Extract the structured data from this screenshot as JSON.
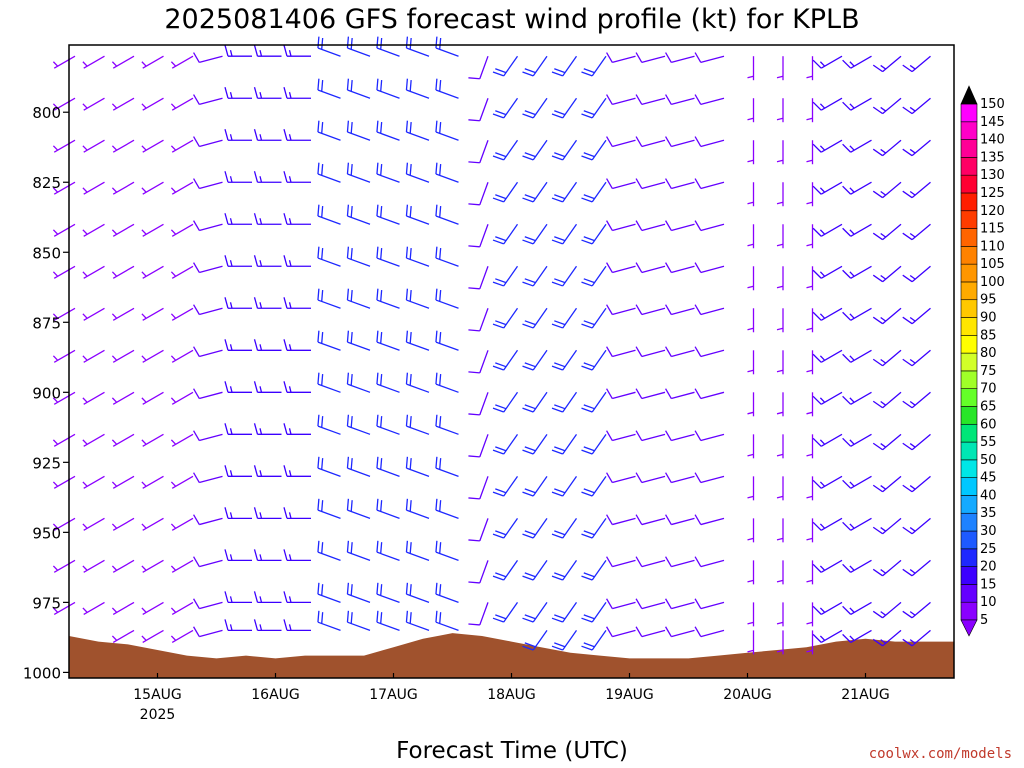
{
  "chart_data": {
    "type": "wind-barb-profile",
    "title": "2025081406 GFS forecast wind profile (kt) for KPLB",
    "xlabel": "Forecast Time (UTC)",
    "credit": "coolwx.com/models",
    "credit_color": "#c0392b",
    "terrain_color": "#a0522d",
    "y_axis": {
      "scale": "linear-pressure-inverted",
      "range_hpa": [
        1002,
        776
      ],
      "ticks": [
        {
          "value": 800,
          "label": "800"
        },
        {
          "value": 825,
          "label": "825"
        },
        {
          "value": 850,
          "label": "850"
        },
        {
          "value": 875,
          "label": "875"
        },
        {
          "value": 900,
          "label": "900"
        },
        {
          "value": 925,
          "label": "925"
        },
        {
          "value": 950,
          "label": "950"
        },
        {
          "value": 975,
          "label": "975"
        },
        {
          "value": 1000,
          "label": "1000"
        }
      ]
    },
    "x_axis": {
      "range_hours_from_init": [
        0,
        180
      ],
      "ticks": [
        {
          "hour": 18,
          "label": "15AUG",
          "sublabel": "2025"
        },
        {
          "hour": 42,
          "label": "16AUG",
          "sublabel": ""
        },
        {
          "hour": 66,
          "label": "17AUG",
          "sublabel": ""
        },
        {
          "hour": 90,
          "label": "18AUG",
          "sublabel": ""
        },
        {
          "hour": 114,
          "label": "19AUG",
          "sublabel": ""
        },
        {
          "hour": 138,
          "label": "20AUG",
          "sublabel": ""
        },
        {
          "hour": 162,
          "label": "21AUG",
          "sublabel": ""
        }
      ]
    },
    "levels_hpa": [
      780,
      795,
      810,
      825,
      840,
      855,
      870,
      885,
      900,
      915,
      930,
      945,
      960,
      975,
      985
    ],
    "time_hours": [
      0,
      6,
      12,
      18,
      24,
      30,
      36,
      42,
      48,
      54,
      60,
      66,
      72,
      78,
      84,
      90,
      96,
      102,
      108,
      114,
      120,
      126,
      132,
      138,
      144,
      150,
      156,
      162,
      168,
      174
    ],
    "wind_regimes": [
      {
        "hours": [
          0,
          30
        ],
        "direction_deg": 240,
        "speed_kt": 7
      },
      {
        "hours": [
          30,
          36
        ],
        "direction_deg": 255,
        "speed_kt": 8
      },
      {
        "hours": [
          36,
          54
        ],
        "direction_deg": 270,
        "speed_kt": 14
      },
      {
        "hours": [
          54,
          84
        ],
        "direction_deg": 290,
        "speed_kt": 22
      },
      {
        "hours": [
          84,
          90
        ],
        "direction_deg": 200,
        "speed_kt": 10
      },
      {
        "hours": [
          90,
          114
        ],
        "direction_deg": 215,
        "speed_kt": 18
      },
      {
        "hours": [
          114,
          138
        ],
        "direction_deg": 255,
        "speed_kt": 12
      },
      {
        "hours": [
          138,
          156
        ],
        "direction_deg": 180,
        "speed_kt": 7
      },
      {
        "hours": [
          156,
          168
        ],
        "direction_deg": 240,
        "speed_kt": 13
      },
      {
        "hours": [
          168,
          180
        ],
        "direction_deg": 230,
        "speed_kt": 16
      }
    ],
    "surface_pressure_hpa": [
      [
        0,
        987
      ],
      [
        6,
        989
      ],
      [
        12,
        990
      ],
      [
        18,
        992
      ],
      [
        24,
        994
      ],
      [
        30,
        995
      ],
      [
        36,
        994
      ],
      [
        42,
        995
      ],
      [
        48,
        994
      ],
      [
        54,
        994
      ],
      [
        60,
        994
      ],
      [
        66,
        991
      ],
      [
        72,
        988
      ],
      [
        78,
        986
      ],
      [
        84,
        987
      ],
      [
        90,
        989
      ],
      [
        96,
        991
      ],
      [
        102,
        993
      ],
      [
        108,
        994
      ],
      [
        114,
        995
      ],
      [
        120,
        995
      ],
      [
        126,
        995
      ],
      [
        132,
        994
      ],
      [
        138,
        993
      ],
      [
        144,
        992
      ],
      [
        150,
        991
      ],
      [
        156,
        989
      ],
      [
        162,
        988
      ],
      [
        168,
        989
      ],
      [
        174,
        989
      ],
      [
        180,
        989
      ]
    ],
    "colorbar": {
      "min_kt": 5,
      "max_kt": 150,
      "step_kt": 5,
      "labels": [
        "5",
        "10",
        "15",
        "20",
        "25",
        "30",
        "35",
        "40",
        "45",
        "50",
        "55",
        "60",
        "65",
        "70",
        "75",
        "80",
        "85",
        "90",
        "95",
        "100",
        "105",
        "110",
        "115",
        "120",
        "125",
        "130",
        "135",
        "140",
        "145",
        "150"
      ],
      "colors": [
        "#8a00ff",
        "#6400ff",
        "#3c00ff",
        "#1e28ff",
        "#1e5aff",
        "#1e82ff",
        "#14aaff",
        "#00c8ff",
        "#00e6e6",
        "#00e6b4",
        "#00e678",
        "#28e628",
        "#64ff28",
        "#a0ff28",
        "#d2ff28",
        "#ffff00",
        "#ffe600",
        "#ffc800",
        "#ffaa00",
        "#ff9600",
        "#ff8200",
        "#ff6400",
        "#ff3c00",
        "#ff1e00",
        "#ff0032",
        "#ff0064",
        "#ff0096",
        "#ff00c8",
        "#ff00ff",
        "#000000"
      ]
    }
  }
}
